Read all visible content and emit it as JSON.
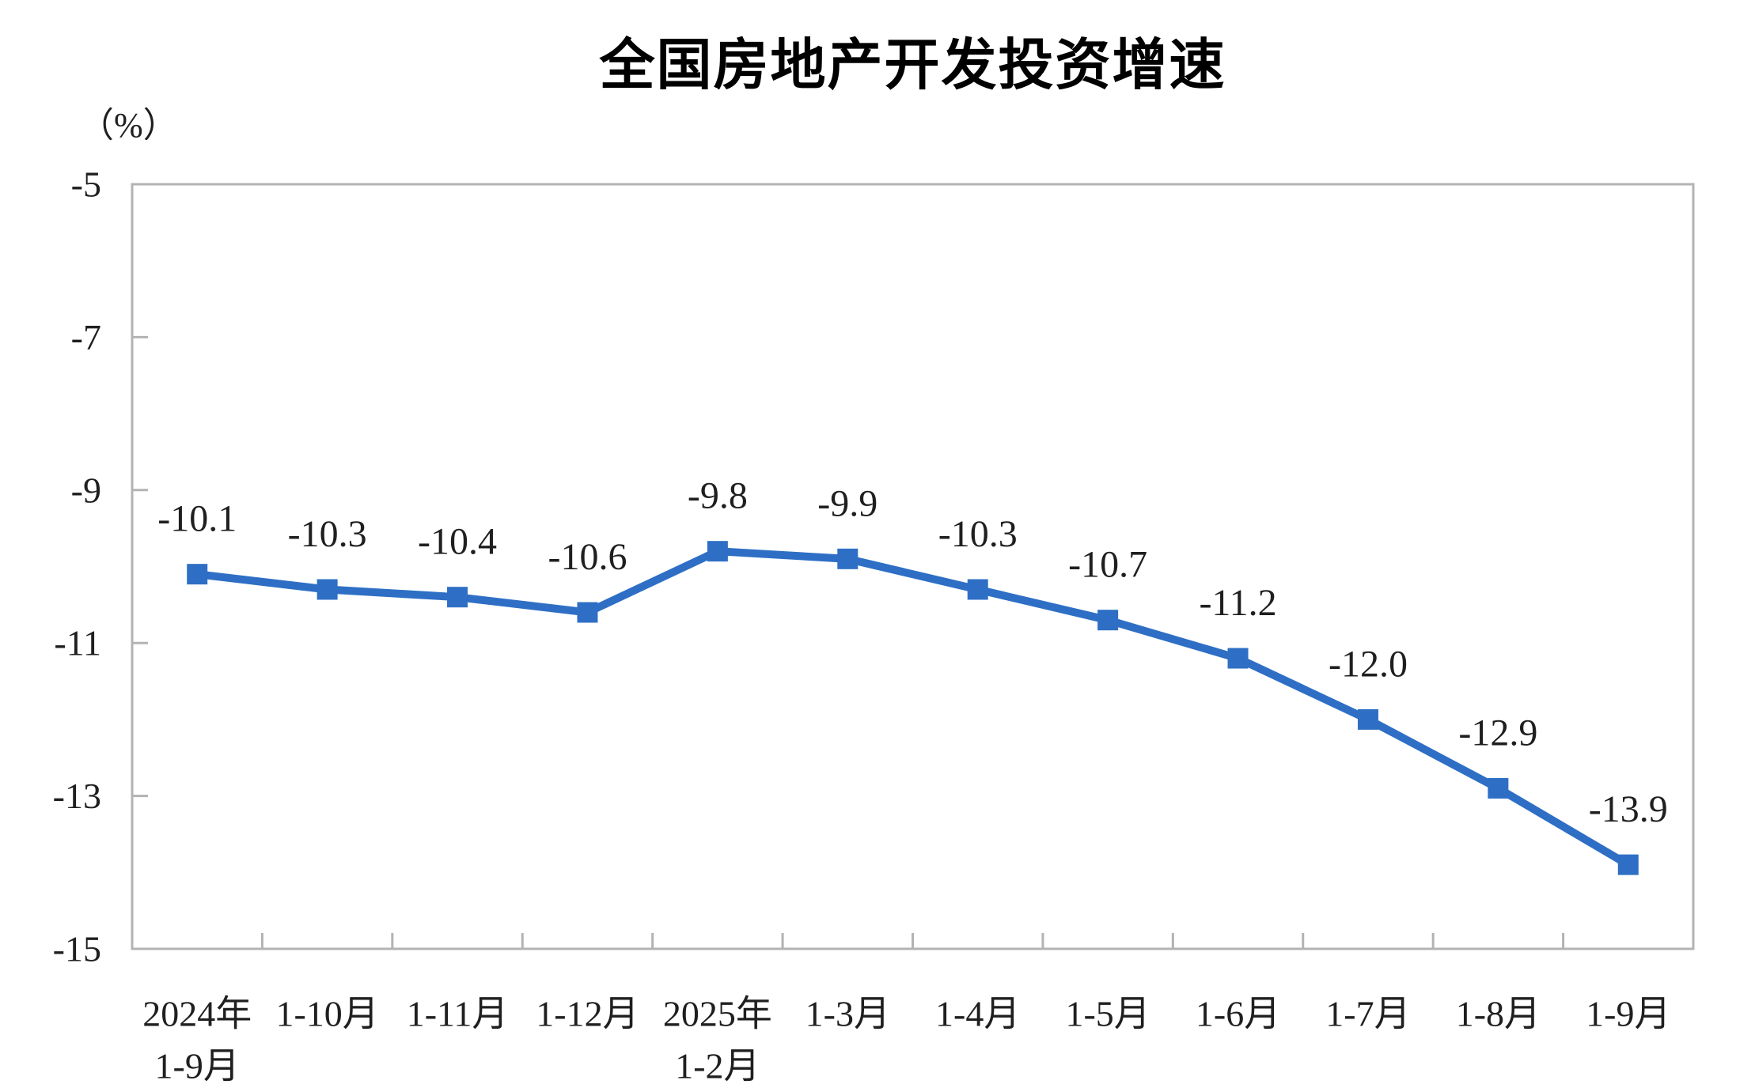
{
  "chart_data": {
    "type": "line",
    "title": "全国房地产开发投资增速",
    "unit_label": "（%）",
    "categories": [
      [
        "2024年",
        "1-9月"
      ],
      [
        "1-10月"
      ],
      [
        "1-11月"
      ],
      [
        "1-12月"
      ],
      [
        "2025年",
        "1-2月"
      ],
      [
        "1-3月"
      ],
      [
        "1-4月"
      ],
      [
        "1-5月"
      ],
      [
        "1-6月"
      ],
      [
        "1-7月"
      ],
      [
        "1-8月"
      ],
      [
        "1-9月"
      ]
    ],
    "series": [
      {
        "name": "全国房地产开发投资增速",
        "values": [
          -10.1,
          -10.3,
          -10.4,
          -10.6,
          -9.8,
          -9.9,
          -10.3,
          -10.7,
          -11.2,
          -12.0,
          -12.9,
          -13.9
        ],
        "data_labels": [
          "-10.1",
          "-10.3",
          "-10.4",
          "-10.6",
          "-9.8",
          "-9.9",
          "-10.3",
          "-10.7",
          "-11.2",
          "-12.0",
          "-12.9",
          "-13.9"
        ]
      }
    ],
    "xlabel": "",
    "ylabel": "（%）",
    "ylim": [
      -15,
      -5
    ],
    "yticks": [
      -5,
      -7,
      -9,
      -11,
      -13,
      -15
    ],
    "ytick_labels": [
      "-5",
      "-7",
      "-9",
      "-11",
      "-13",
      "-15"
    ],
    "grid": false,
    "legend_position": "none",
    "marker": "square",
    "colors": {
      "line": "#2e6fc5",
      "marker": "#2e6fc5",
      "axis": "#b3b3b3",
      "text": "#1f1f1f",
      "title": "#000000",
      "background": "#ffffff"
    }
  }
}
